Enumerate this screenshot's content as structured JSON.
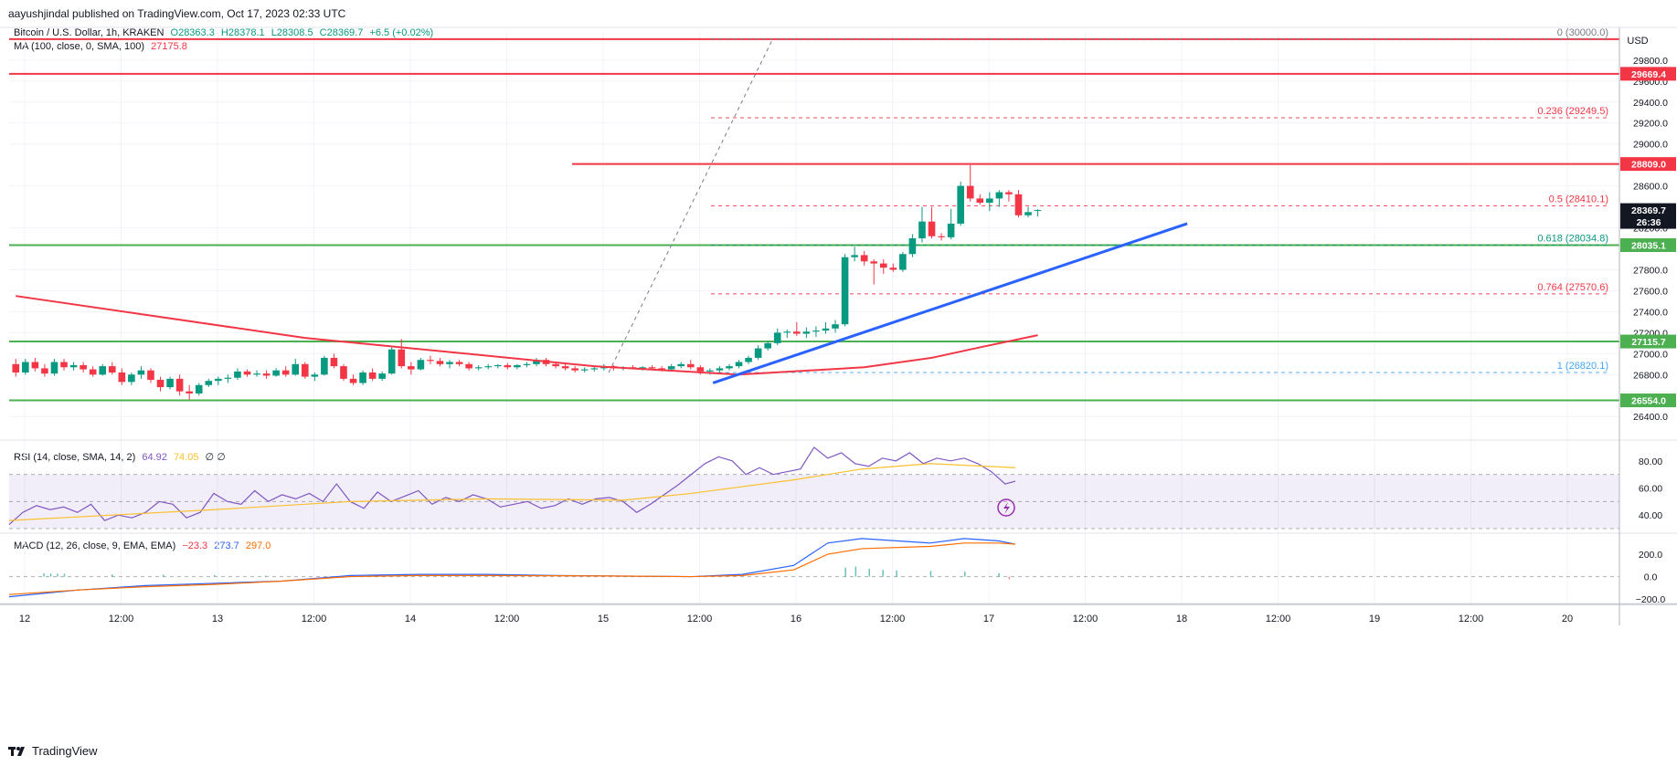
{
  "header": {
    "publisher": "aayushjindal published on TradingView.com, Oct 17, 2023 02:33 UTC"
  },
  "legend": {
    "symbol": "Bitcoin / U.S. Dollar, 1h, KRAKEN",
    "open": "O28363.3",
    "high": "H28378.1",
    "low": "L28308.5",
    "close": "C28369.7",
    "change": "+6.5 (+0.02%)",
    "ma_label": "MA (100, close, 0, SMA, 100)",
    "ma_value": "27175.8",
    "rsi_label": "RSI (14, close, SMA, 14, 2)",
    "rsi_value": "64.92",
    "rsi_ma_value": "74.05",
    "rsi_extra": "∅ ∅",
    "macd_label": "MACD (12, 26, close, 9, EMA, EMA)",
    "macd_hist": "−23.3",
    "macd_line": "273.7",
    "macd_signal": "297.0"
  },
  "currency": "USD",
  "brand": "TradingView",
  "colors": {
    "up": "#089981",
    "down": "#f23645",
    "support": "#4caf50",
    "resistance": "#f23645",
    "trendline": "#2962ff",
    "ma": "#f23645",
    "rsi": "#7e57c2",
    "rsi_ma": "#fbc02d",
    "macd": "#2962ff",
    "signal": "#ff6d00"
  },
  "chart_data": {
    "type": "candlestick",
    "x_axis_labels": [
      "12",
      "12:00",
      "13",
      "12:00",
      "14",
      "12:00",
      "15",
      "12:00",
      "16",
      "12:00",
      "17",
      "12:00",
      "18",
      "12:00",
      "19",
      "12:00",
      "20"
    ],
    "y_axis_ticks": [
      "29800.0",
      "29600.0",
      "29400.0",
      "29200.0",
      "29000.0",
      "28600.0",
      "28200.0",
      "27800.0",
      "27600.0",
      "27400.0",
      "27200.0",
      "27000.0",
      "26800.0",
      "26400.0"
    ],
    "ylim": [
      26280,
      30060
    ],
    "price_badges": [
      {
        "value": 30000.0,
        "text": "30000.0",
        "style": "plain"
      },
      {
        "value": 29669.4,
        "text": "29669.4",
        "style": "red"
      },
      {
        "value": 28809.0,
        "text": "28809.0",
        "style": "red"
      },
      {
        "value": 28369.7,
        "text": "28369.7",
        "extra": "26:36",
        "style": "dark"
      },
      {
        "value": 28035.1,
        "text": "28035.1",
        "style": "green"
      },
      {
        "value": 27115.7,
        "text": "27115.7",
        "style": "green"
      },
      {
        "value": 26554.0,
        "text": "26554.0",
        "style": "green"
      }
    ],
    "horizontal_levels": [
      {
        "value": 30000.0,
        "color": "#f23645",
        "from_fraction": 0.0
      },
      {
        "value": 29669.4,
        "color": "#f23645",
        "from_fraction": 0.0
      },
      {
        "value": 28809.0,
        "color": "#f23645",
        "from_fraction": 0.38
      },
      {
        "value": 28035.1,
        "color": "#4caf50",
        "from_fraction": 0.0
      },
      {
        "value": 27115.7,
        "color": "#4caf50",
        "from_fraction": 0.0
      },
      {
        "value": 26554.0,
        "color": "#4caf50",
        "from_fraction": 0.0
      }
    ],
    "fibonacci": [
      {
        "ratio": "0",
        "price": "30000.0",
        "value": 30000.0,
        "color": "#787b86"
      },
      {
        "ratio": "0.236",
        "price": "29249.5",
        "value": 29249.5,
        "color": "#f23645"
      },
      {
        "ratio": "0.5",
        "price": "28410.1",
        "value": 28410.1,
        "color": "#f23645"
      },
      {
        "ratio": "0.618",
        "price": "28034.8",
        "value": 28034.8,
        "color": "#089981"
      },
      {
        "ratio": "0.764",
        "price": "27570.6",
        "value": 27570.6,
        "color": "#f23645"
      },
      {
        "ratio": "1",
        "price": "26820.1",
        "value": 26820.1,
        "color": "#42a5f5"
      }
    ],
    "trendline": {
      "start_bar": 73,
      "start_price": 26720,
      "end_bar": 121,
      "end_price": 28240
    },
    "ma_points": [
      [
        0,
        27550
      ],
      [
        30,
        27150
      ],
      [
        60,
        26880
      ],
      [
        75,
        26800
      ],
      [
        88,
        26870
      ],
      [
        95,
        26960
      ],
      [
        100,
        27060
      ],
      [
        106,
        27175.8
      ]
    ],
    "candles_ohlc": [
      [
        26900,
        26950,
        26780,
        26820
      ],
      [
        26820,
        26950,
        26800,
        26920
      ],
      [
        26920,
        26960,
        26830,
        26860
      ],
      [
        26860,
        26900,
        26780,
        26810
      ],
      [
        26810,
        26950,
        26790,
        26920
      ],
      [
        26920,
        26950,
        26840,
        26870
      ],
      [
        26870,
        26920,
        26840,
        26890
      ],
      [
        26890,
        26920,
        26820,
        26850
      ],
      [
        26850,
        26880,
        26780,
        26800
      ],
      [
        26800,
        26900,
        26790,
        26880
      ],
      [
        26880,
        26920,
        26800,
        26820
      ],
      [
        26820,
        26860,
        26700,
        26730
      ],
      [
        26730,
        26820,
        26700,
        26800
      ],
      [
        26800,
        26880,
        26760,
        26840
      ],
      [
        26840,
        26860,
        26720,
        26750
      ],
      [
        26750,
        26780,
        26640,
        26680
      ],
      [
        26680,
        26780,
        26660,
        26760
      ],
      [
        26760,
        26800,
        26600,
        26640
      ],
      [
        26640,
        26700,
        26560,
        26620
      ],
      [
        26620,
        26720,
        26600,
        26700
      ],
      [
        26700,
        26760,
        26680,
        26740
      ],
      [
        26740,
        26780,
        26700,
        26760
      ],
      [
        26760,
        26800,
        26720,
        26770
      ],
      [
        26770,
        26860,
        26750,
        26830
      ],
      [
        26830,
        26850,
        26780,
        26800
      ],
      [
        26800,
        26840,
        26780,
        26810
      ],
      [
        26810,
        26840,
        26760,
        26790
      ],
      [
        26790,
        26860,
        26780,
        26840
      ],
      [
        26840,
        26880,
        26780,
        26800
      ],
      [
        26800,
        26950,
        26790,
        26900
      ],
      [
        26900,
        26920,
        26760,
        26780
      ],
      [
        26780,
        26820,
        26740,
        26800
      ],
      [
        26800,
        26980,
        26790,
        26960
      ],
      [
        26960,
        27000,
        26860,
        26880
      ],
      [
        26880,
        26900,
        26740,
        26760
      ],
      [
        26760,
        26800,
        26700,
        26720
      ],
      [
        26720,
        26840,
        26700,
        26820
      ],
      [
        26820,
        26860,
        26740,
        26760
      ],
      [
        26760,
        26830,
        26740,
        26810
      ],
      [
        26810,
        27060,
        26800,
        27040
      ],
      [
        27040,
        27140,
        26860,
        26880
      ],
      [
        26880,
        26920,
        26800,
        26850
      ],
      [
        26850,
        26960,
        26840,
        26940
      ],
      [
        26940,
        26980,
        26900,
        26930
      ],
      [
        26930,
        26960,
        26880,
        26900
      ],
      [
        26900,
        26940,
        26860,
        26920
      ],
      [
        26920,
        26940,
        26880,
        26900
      ],
      [
        26900,
        26920,
        26840,
        26860
      ],
      [
        26860,
        26890,
        26840,
        26870
      ],
      [
        26870,
        26900,
        26850,
        26880
      ],
      [
        26880,
        26900,
        26860,
        26890
      ],
      [
        26890,
        26910,
        26850,
        26870
      ],
      [
        26870,
        26900,
        26850,
        26890
      ],
      [
        26890,
        26920,
        26870,
        26900
      ],
      [
        26900,
        26960,
        26880,
        26940
      ],
      [
        26940,
        26960,
        26880,
        26900
      ],
      [
        26900,
        26920,
        26860,
        26880
      ],
      [
        26880,
        26900,
        26840,
        26860
      ],
      [
        26860,
        26880,
        26820,
        26840
      ],
      [
        26840,
        26870,
        26820,
        26850
      ],
      [
        26850,
        26880,
        26830,
        26860
      ],
      [
        26860,
        26900,
        26840,
        26880
      ],
      [
        26880,
        26890,
        26840,
        26860
      ],
      [
        26860,
        26880,
        26840,
        26870
      ],
      [
        26870,
        26890,
        26850,
        26860
      ],
      [
        26860,
        26880,
        26840,
        26870
      ],
      [
        26870,
        26890,
        26850,
        26860
      ],
      [
        26860,
        26880,
        26830,
        26850
      ],
      [
        26850,
        26900,
        26840,
        26880
      ],
      [
        26880,
        26920,
        26860,
        26900
      ],
      [
        26900,
        26940,
        26850,
        26870
      ],
      [
        26870,
        26890,
        26800,
        26830
      ],
      [
        26830,
        26860,
        26800,
        26840
      ],
      [
        26840,
        26880,
        26810,
        26860
      ],
      [
        26860,
        26900,
        26840,
        26880
      ],
      [
        26880,
        26940,
        26860,
        26920
      ],
      [
        26920,
        26980,
        26900,
        26960
      ],
      [
        26960,
        27080,
        26940,
        27050
      ],
      [
        27050,
        27120,
        27030,
        27100
      ],
      [
        27100,
        27240,
        27080,
        27200
      ],
      [
        27200,
        27230,
        27150,
        27210
      ],
      [
        27210,
        27300,
        27170,
        27190
      ],
      [
        27190,
        27250,
        27150,
        27210
      ],
      [
        27210,
        27260,
        27160,
        27220
      ],
      [
        27220,
        27300,
        27190,
        27240
      ],
      [
        27240,
        27320,
        27200,
        27280
      ],
      [
        27280,
        27950,
        27260,
        27920
      ],
      [
        27920,
        28020,
        27880,
        27940
      ],
      [
        27940,
        27980,
        27840,
        27880
      ],
      [
        27880,
        27900,
        27660,
        27860
      ],
      [
        27860,
        27900,
        27760,
        27820
      ],
      [
        27820,
        27860,
        27780,
        27800
      ],
      [
        27800,
        27970,
        27780,
        27950
      ],
      [
        27950,
        28140,
        27920,
        28100
      ],
      [
        28100,
        28400,
        28060,
        28260
      ],
      [
        28260,
        28400,
        28100,
        28120
      ],
      [
        28120,
        28150,
        28080,
        28110
      ],
      [
        28110,
        28380,
        28090,
        28240
      ],
      [
        28240,
        28640,
        28220,
        28600
      ],
      [
        28600,
        28800,
        28450,
        28480
      ],
      [
        28480,
        28520,
        28420,
        28440
      ],
      [
        28440,
        28540,
        28360,
        28480
      ],
      [
        28480,
        28560,
        28400,
        28540
      ],
      [
        28540,
        28560,
        28450,
        28520
      ],
      [
        28520,
        28560,
        28300,
        28320
      ],
      [
        28320,
        28400,
        28300,
        28350
      ],
      [
        28363.3,
        28378.1,
        28308.5,
        28369.7
      ]
    ],
    "rsi_ylim": [
      28,
      92
    ],
    "rsi_ticks": [
      "80.00",
      "60.00",
      "40.00"
    ],
    "rsi_band": [
      30,
      70
    ],
    "rsi_points": [
      [
        0,
        33
      ],
      [
        4,
        42
      ],
      [
        8,
        47
      ],
      [
        12,
        44
      ],
      [
        16,
        46
      ],
      [
        20,
        42
      ],
      [
        24,
        48
      ],
      [
        28,
        36
      ],
      [
        32,
        40
      ],
      [
        36,
        38
      ],
      [
        40,
        42
      ],
      [
        44,
        50
      ],
      [
        48,
        48
      ],
      [
        52,
        38
      ],
      [
        56,
        42
      ],
      [
        60,
        56
      ],
      [
        64,
        50
      ],
      [
        68,
        48
      ],
      [
        72,
        58
      ],
      [
        76,
        50
      ],
      [
        80,
        55
      ],
      [
        84,
        52
      ],
      [
        88,
        56
      ],
      [
        92,
        50
      ],
      [
        96,
        63
      ],
      [
        100,
        50
      ],
      [
        104,
        45
      ],
      [
        108,
        57
      ],
      [
        112,
        50
      ],
      [
        116,
        54
      ],
      [
        120,
        58
      ],
      [
        124,
        48
      ],
      [
        128,
        53
      ],
      [
        132,
        50
      ],
      [
        136,
        55
      ],
      [
        140,
        52
      ],
      [
        144,
        46
      ],
      [
        148,
        48
      ],
      [
        152,
        50
      ],
      [
        156,
        45
      ],
      [
        160,
        47
      ],
      [
        164,
        52
      ],
      [
        168,
        48
      ],
      [
        172,
        52
      ],
      [
        176,
        53
      ],
      [
        180,
        50
      ],
      [
        184,
        42
      ],
      [
        188,
        48
      ],
      [
        192,
        55
      ],
      [
        196,
        62
      ],
      [
        200,
        70
      ],
      [
        204,
        78
      ],
      [
        208,
        83
      ],
      [
        212,
        80
      ],
      [
        216,
        70
      ],
      [
        220,
        75
      ],
      [
        224,
        70
      ],
      [
        228,
        72
      ],
      [
        232,
        74
      ],
      [
        236,
        90
      ],
      [
        240,
        82
      ],
      [
        244,
        86
      ],
      [
        248,
        78
      ],
      [
        252,
        76
      ],
      [
        256,
        82
      ],
      [
        260,
        80
      ],
      [
        264,
        86
      ],
      [
        268,
        78
      ],
      [
        272,
        82
      ],
      [
        276,
        80
      ],
      [
        280,
        82
      ],
      [
        284,
        78
      ],
      [
        288,
        72
      ],
      [
        292,
        63
      ],
      [
        295,
        65
      ]
    ],
    "rsi_ma_points": [
      [
        0,
        36
      ],
      [
        30,
        40
      ],
      [
        60,
        44
      ],
      [
        100,
        50
      ],
      [
        140,
        52
      ],
      [
        180,
        51
      ],
      [
        200,
        56
      ],
      [
        230,
        66
      ],
      [
        250,
        74
      ],
      [
        270,
        78
      ],
      [
        295,
        75
      ]
    ],
    "macd_ylim": [
      -240,
      380
    ],
    "macd_ticks": [
      "200.0",
      "0.0",
      "−200.0"
    ],
    "macd_points": [
      [
        0,
        -180
      ],
      [
        20,
        -120
      ],
      [
        40,
        -80
      ],
      [
        60,
        -60
      ],
      [
        80,
        -40
      ],
      [
        100,
        10
      ],
      [
        120,
        20
      ],
      [
        140,
        20
      ],
      [
        160,
        10
      ],
      [
        180,
        5
      ],
      [
        200,
        0
      ],
      [
        215,
        20
      ],
      [
        230,
        100
      ],
      [
        240,
        300
      ],
      [
        250,
        340
      ],
      [
        270,
        300
      ],
      [
        280,
        340
      ],
      [
        290,
        320
      ],
      [
        295,
        290
      ]
    ],
    "signal_points": [
      [
        0,
        -160
      ],
      [
        20,
        -120
      ],
      [
        40,
        -90
      ],
      [
        60,
        -70
      ],
      [
        80,
        -40
      ],
      [
        100,
        0
      ],
      [
        120,
        10
      ],
      [
        140,
        10
      ],
      [
        160,
        8
      ],
      [
        180,
        5
      ],
      [
        200,
        0
      ],
      [
        215,
        10
      ],
      [
        230,
        60
      ],
      [
        240,
        200
      ],
      [
        250,
        250
      ],
      [
        270,
        270
      ],
      [
        280,
        300
      ],
      [
        290,
        300
      ],
      [
        295,
        290
      ]
    ],
    "macd_hist": [
      [
        10,
        30
      ],
      [
        12,
        28
      ],
      [
        14,
        26
      ],
      [
        16,
        25
      ],
      [
        30,
        20
      ],
      [
        45,
        18
      ],
      [
        60,
        15
      ],
      [
        75,
        10
      ],
      [
        245,
        80
      ],
      [
        248,
        90
      ],
      [
        252,
        70
      ],
      [
        256,
        60
      ],
      [
        260,
        55
      ],
      [
        270,
        50
      ],
      [
        280,
        45
      ],
      [
        290,
        30
      ],
      [
        293,
        -23.3
      ]
    ]
  }
}
